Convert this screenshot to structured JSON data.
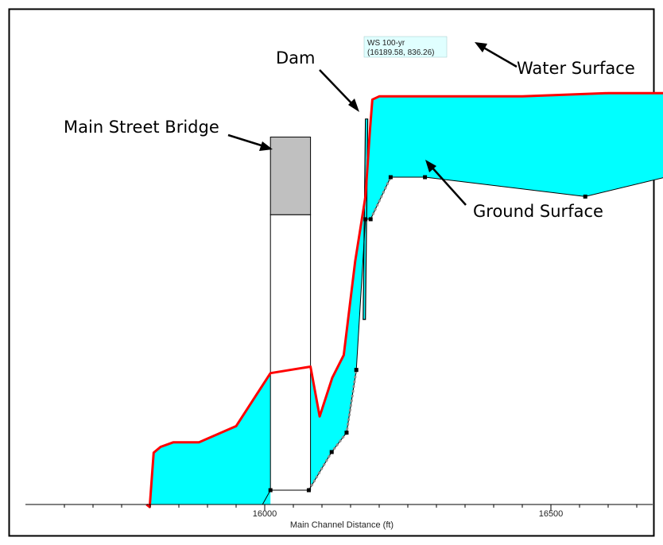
{
  "chart_data": {
    "type": "area",
    "xlabel": "Main Channel Distance (ft)",
    "ylabel": "",
    "x_range": [
      15770,
      16700
    ],
    "x_ticks": [
      16000,
      16500
    ],
    "x_tick_labels": [
      "16000",
      "16500"
    ],
    "grid": false,
    "legend": "none",
    "colors": {
      "water_fill": "#00ffff",
      "water_surface_line": "#ff0000",
      "bridge_deck": "#c0c0c0",
      "ground_line": "#000000",
      "ground_dots": "#909090",
      "border": "#000000"
    },
    "water_surface": {
      "name": "Water Surface",
      "points": [
        [
          15799,
          795
        ],
        [
          15806,
          803.4
        ],
        [
          15818,
          804.3
        ],
        [
          15840,
          805
        ],
        [
          15885,
          805
        ],
        [
          15950,
          807.5
        ],
        [
          16010,
          815.7
        ],
        [
          16080,
          816.7
        ],
        [
          16096,
          809
        ],
        [
          16118,
          815
        ],
        [
          16138,
          818.5
        ],
        [
          16158,
          833
        ],
        [
          16176,
          843
        ],
        [
          16184,
          853.5
        ],
        [
          16188,
          858
        ],
        [
          16200,
          858.5
        ],
        [
          16300,
          858.5
        ],
        [
          16450,
          858.5
        ],
        [
          16600,
          859
        ],
        [
          16700,
          859
        ]
      ]
    },
    "ground_surface": {
      "name": "Ground Surface",
      "points": [
        [
          16010,
          797.6
        ],
        [
          16077,
          797.6
        ],
        [
          16117,
          803.5
        ],
        [
          16143,
          806.5
        ],
        [
          16160,
          816.2
        ],
        [
          16176,
          839.5
        ],
        [
          16185,
          839.5
        ],
        [
          16220,
          846
        ],
        [
          16280,
          846
        ],
        [
          16560,
          843
        ],
        [
          16700,
          846
        ]
      ]
    },
    "dam": {
      "name": "Dam",
      "points": [
        [
          16172,
          824
        ],
        [
          16176,
          824
        ],
        [
          16180,
          855
        ],
        [
          16176,
          855
        ]
      ]
    },
    "bridge": {
      "name": "Main Street Bridge",
      "x_range": [
        16010,
        16080
      ],
      "deck_elev": [
        840.2,
        852.2
      ],
      "low_chord": 840.2,
      "ground": 797.6
    },
    "annotations": [
      {
        "text": "Dam"
      },
      {
        "text": "Main Street Bridge"
      },
      {
        "text": "Water Surface"
      },
      {
        "text": "Ground Surface"
      }
    ],
    "tooltip": {
      "line1": "WS  100-yr",
      "line2": "(16189.58, 836.26)"
    }
  }
}
